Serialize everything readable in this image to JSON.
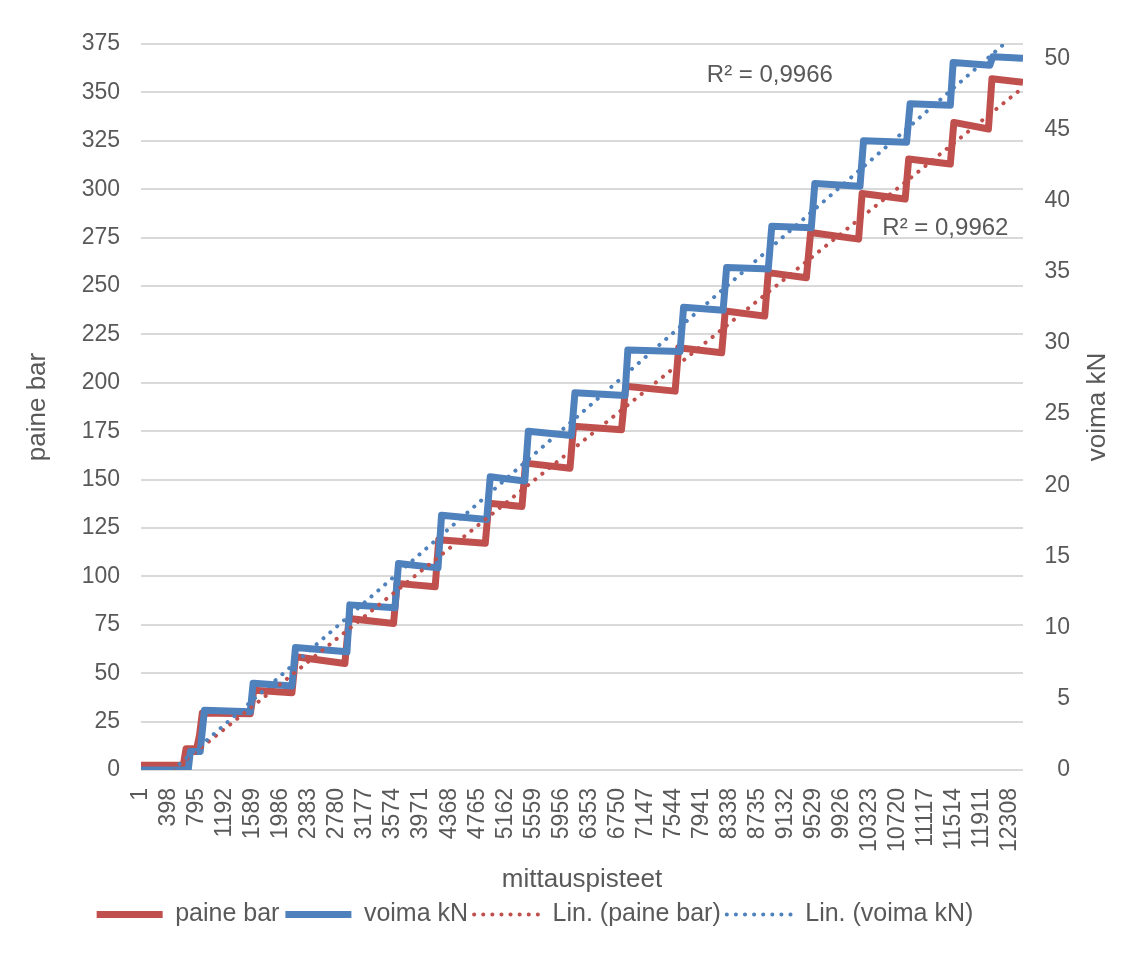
{
  "chart_data": {
    "type": "line",
    "xlabel": "mittauspisteet",
    "ylabel": "paine bar",
    "y2label": "voima kN",
    "xlim": [
      1,
      12500
    ],
    "xticks": [
      1,
      398,
      795,
      1192,
      1589,
      1986,
      2383,
      2780,
      3177,
      3574,
      3971,
      4368,
      4765,
      5162,
      5559,
      5956,
      6353,
      6750,
      7147,
      7544,
      7941,
      8338,
      8735,
      9132,
      9529,
      9926,
      10323,
      10720,
      11117,
      11514,
      11911,
      12308
    ],
    "ylim": [
      0,
      375
    ],
    "yticks": [
      0,
      25,
      50,
      75,
      100,
      125,
      150,
      175,
      200,
      225,
      250,
      275,
      300,
      325,
      350,
      375
    ],
    "y2lim": [
      0,
      51
    ],
    "y2ticks": [
      0,
      5,
      10,
      15,
      20,
      25,
      30,
      35,
      40,
      45,
      50
    ],
    "grid": "y",
    "legend": "bottom",
    "series": [
      {
        "name": "paine bar",
        "color": "#c0504d",
        "x": [
          1,
          600,
          640,
          790,
          830,
          870,
          1550,
          1600,
          2140,
          2190,
          2890,
          2950,
          3580,
          3630,
          4170,
          4220,
          4880,
          4930,
          5400,
          5450,
          6080,
          6130,
          6810,
          6870,
          7570,
          7620,
          8230,
          8280,
          8840,
          8890,
          9430,
          9490,
          10170,
          10220,
          10830,
          10880,
          11470,
          11520,
          12010,
          12060,
          12500
        ],
        "values": [
          2.4,
          2.4,
          11,
          11,
          18,
          29.5,
          29.1,
          41.2,
          39.9,
          58.5,
          55,
          78.3,
          75.7,
          96.4,
          94.7,
          118.9,
          117.1,
          137.8,
          136.1,
          158.5,
          155.9,
          177.5,
          175.8,
          198.2,
          195.7,
          218.1,
          215.5,
          237.1,
          234.5,
          256.9,
          254.3,
          277.6,
          274.2,
          297.8,
          294.9,
          315.6,
          313,
          334.5,
          331.1,
          357,
          355.2
        ]
      },
      {
        "name": "voima kN",
        "color": "#4f81bd",
        "axis": "y2",
        "x": [
          1,
          670,
          700,
          840,
          900,
          1550,
          1590,
          2140,
          2190,
          2920,
          2960,
          3600,
          3650,
          4210,
          4260,
          4900,
          4950,
          5440,
          5490,
          6100,
          6150,
          6860,
          6900,
          7640,
          7690,
          8250,
          8300,
          8890,
          8940,
          9500,
          9550,
          10190,
          10240,
          10850,
          10900,
          11470,
          11510,
          12030,
          12070,
          12500
        ],
        "values": [
          0,
          0,
          1.3,
          1.3,
          4.2,
          4.1,
          6.1,
          5.9,
          8.6,
          8.3,
          11.6,
          11.4,
          14.5,
          14.2,
          17.9,
          17.6,
          20.6,
          20.3,
          23.8,
          23.5,
          26.5,
          26.3,
          29.5,
          29.4,
          32.5,
          32.3,
          35.3,
          35.2,
          38.2,
          38.1,
          41.2,
          41,
          44.2,
          44.1,
          46.8,
          46.7,
          49.7,
          49.5,
          50.1,
          50
        ]
      },
      {
        "name": "Lin. (paine bar)",
        "color": "#c0504d",
        "line_style": "dotted",
        "x": [
          460,
          12500
        ],
        "values": [
          0,
          352.5
        ]
      },
      {
        "name": "Lin. (voima kN)",
        "color": "#4f81bd",
        "line_style": "dotted",
        "axis": "y2",
        "x": [
          450,
          12230
        ],
        "values": [
          0,
          51
        ]
      }
    ],
    "annotations": [
      "R² = 0,9966",
      "R² = 0,9962"
    ]
  }
}
